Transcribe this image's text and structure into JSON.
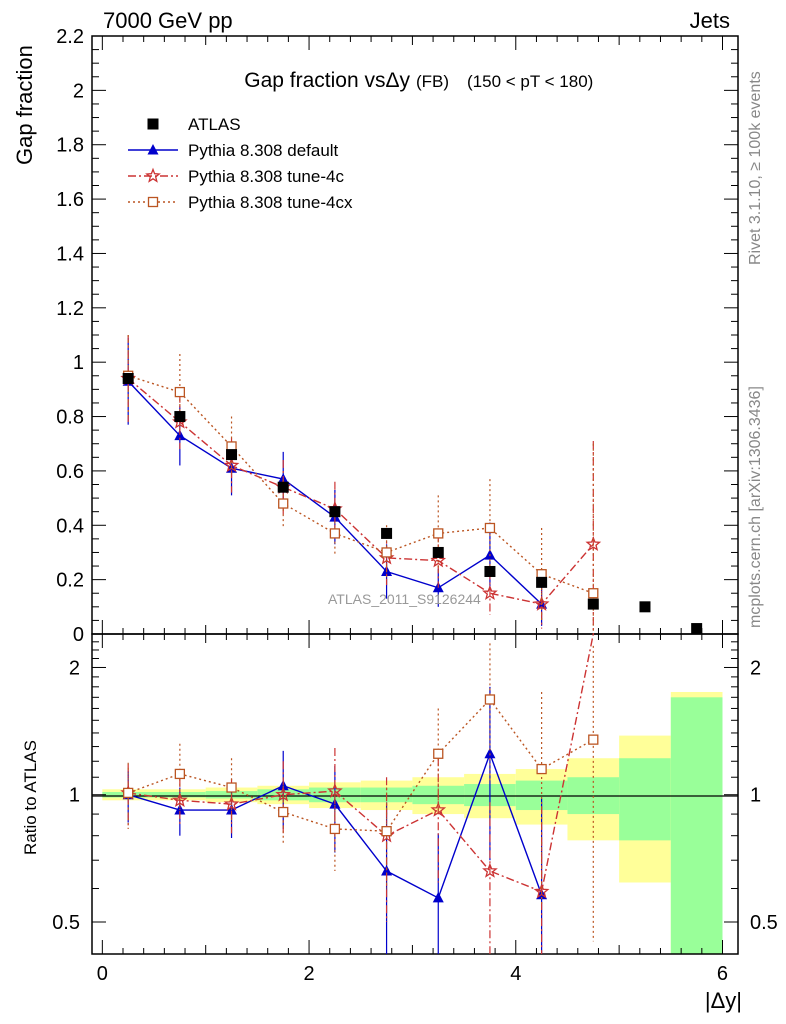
{
  "header": {
    "left": "7000 GeV pp",
    "right": "Jets",
    "side_top": "Rivet 3.1.10, ≥ 100k events",
    "side_bottom": "mcplots.cern.ch [arXiv:1306.3436]"
  },
  "chart_data": {
    "type": "scatter",
    "title": "Gap fraction vsΔy",
    "title_suffix": "(FB)",
    "subtitle": "(150 < pT < 180)",
    "watermark": "ATLAS_2011_S9126244",
    "xlabel": "|Δy|",
    "ylabel": "Gap fraction",
    "ratio_ylabel": "Ratio to ATLAS",
    "xlim": [
      -0.1,
      6.15
    ],
    "ylim": [
      0,
      2.2
    ],
    "ratio_ylim": [
      0.42,
      2.4
    ],
    "ratio_scale": "log",
    "x_ticks": [
      "0",
      "2",
      "4",
      "6"
    ],
    "y_ticks": [
      "0",
      "0.2",
      "0.4",
      "0.6",
      "0.8",
      "1",
      "1.2",
      "1.4",
      "1.6",
      "1.8",
      "2",
      "2.2"
    ],
    "ratio_ticks": [
      "0.5",
      "1",
      "2"
    ],
    "legend_position": "top-left",
    "data": {
      "name": "ATLAS",
      "color": "#000000",
      "x": [
        0.25,
        0.75,
        1.25,
        1.75,
        2.25,
        2.75,
        3.25,
        3.75,
        4.25,
        4.75,
        5.25,
        5.75
      ],
      "y": [
        0.94,
        0.8,
        0.66,
        0.54,
        0.45,
        0.37,
        0.3,
        0.23,
        0.19,
        0.11,
        0.1,
        0.02
      ],
      "band_outer": [
        0.03,
        0.03,
        0.04,
        0.05,
        0.07,
        0.08,
        0.1,
        0.12,
        0.15,
        0.22,
        0.38,
        0.75
      ],
      "band_inner": [
        0.015,
        0.015,
        0.02,
        0.03,
        0.04,
        0.04,
        0.05,
        0.06,
        0.08,
        0.1,
        0.22,
        0.7
      ]
    },
    "series": [
      {
        "name": "Pythia 8.308 default",
        "color": "#0000cc",
        "marker": "triangle",
        "line": "solid",
        "x": [
          0.25,
          0.75,
          1.25,
          1.75,
          2.25,
          2.75,
          3.25,
          3.75,
          4.25
        ],
        "y": [
          0.93,
          0.73,
          0.61,
          0.57,
          0.43,
          0.23,
          0.17,
          0.29,
          0.11
        ],
        "err": [
          0.16,
          0.11,
          0.1,
          0.1,
          0.1,
          0.1,
          0.07,
          0.12,
          0.08
        ],
        "ratio": [
          1.0,
          0.92,
          0.92,
          1.05,
          0.95,
          0.66,
          0.57,
          1.25,
          0.58
        ],
        "ratio_err": [
          0.14,
          0.12,
          0.13,
          0.22,
          0.22,
          0.3,
          0.24,
          0.55,
          0.4
        ]
      },
      {
        "name": "Pythia 8.308 tune-4c",
        "color": "#cc3333",
        "marker": "star",
        "line": "dashdot",
        "x": [
          0.25,
          0.75,
          1.25,
          1.75,
          2.25,
          2.75,
          3.25,
          3.75,
          4.25,
          4.75
        ],
        "y": [
          0.94,
          0.78,
          0.62,
          0.54,
          0.46,
          0.28,
          0.27,
          0.15,
          0.11,
          0.33
        ],
        "err": [
          0.16,
          0.1,
          0.1,
          0.1,
          0.1,
          0.1,
          0.1,
          0.08,
          0.09,
          0.38
        ],
        "ratio": [
          1.01,
          0.97,
          0.95,
          1.0,
          1.02,
          0.8,
          0.92,
          0.66,
          0.59,
          3.0
        ],
        "ratio_err": [
          0.17,
          0.12,
          0.14,
          0.2,
          0.27,
          0.3,
          0.3,
          0.3,
          0.35,
          0.0
        ]
      },
      {
        "name": "Pythia 8.308 tune-4cx",
        "color": "#bb5522",
        "marker": "square-open",
        "line": "dotted",
        "x": [
          0.25,
          0.75,
          1.25,
          1.75,
          2.25,
          2.75,
          3.25,
          3.75,
          4.25,
          4.75
        ],
        "y": [
          0.95,
          0.89,
          0.69,
          0.48,
          0.37,
          0.3,
          0.37,
          0.39,
          0.22,
          0.15
        ],
        "err": [
          0.15,
          0.14,
          0.11,
          0.09,
          0.08,
          0.1,
          0.14,
          0.18,
          0.17,
          0.55
        ],
        "ratio": [
          1.01,
          1.12,
          1.04,
          0.91,
          0.83,
          0.82,
          1.25,
          1.68,
          1.15,
          1.35
        ],
        "ratio_err": [
          0.18,
          0.2,
          0.18,
          0.14,
          0.17,
          0.22,
          0.35,
          0.6,
          0.6,
          0.9
        ]
      }
    ]
  }
}
